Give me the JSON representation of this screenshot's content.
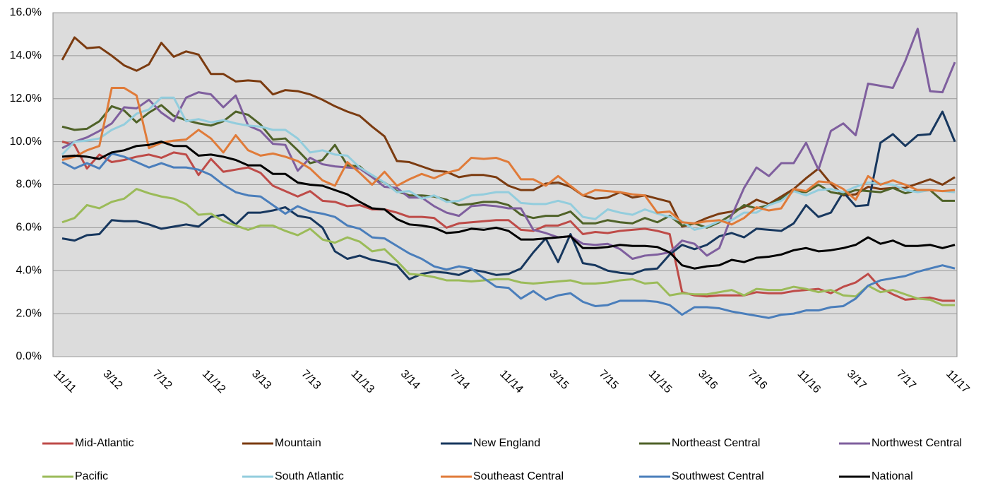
{
  "chart_data": {
    "type": "line",
    "categories": [
      "11/11",
      null,
      null,
      null,
      "3/12",
      null,
      null,
      null,
      "7/12",
      null,
      null,
      null,
      "11/12",
      null,
      null,
      null,
      "3/13",
      null,
      null,
      null,
      "7/13",
      null,
      null,
      null,
      "11/13",
      null,
      null,
      null,
      "3/14",
      null,
      null,
      null,
      "7/14",
      null,
      null,
      null,
      "11/14",
      null,
      null,
      null,
      "3/15",
      null,
      null,
      null,
      "7/15",
      null,
      null,
      null,
      "11/15",
      null,
      null,
      null,
      "3/16",
      null,
      null,
      null,
      "7/16",
      null,
      null,
      null,
      "11/16",
      null,
      null,
      null,
      "3/17",
      null,
      null,
      null,
      "7/17",
      null,
      null,
      null,
      "11/17"
    ],
    "ylim": [
      0,
      16
    ],
    "yticks": [
      {
        "value": 0,
        "label": "0.0%"
      },
      {
        "value": 2,
        "label": "2.0%"
      },
      {
        "value": 4,
        "label": "4.0%"
      },
      {
        "value": 6,
        "label": "6.0%"
      },
      {
        "value": 8,
        "label": "8.0%"
      },
      {
        "value": 10,
        "label": "10.0%"
      },
      {
        "value": 12,
        "label": "12.0%"
      },
      {
        "value": 14,
        "label": "14.0%"
      },
      {
        "value": 16,
        "label": "16.0%"
      }
    ],
    "grid": true,
    "legend": "bottom",
    "series": [
      {
        "name": "Mid-Atlantic",
        "color": "#be4b48",
        "values": [
          10.0,
          9.85,
          8.75,
          9.4,
          9.05,
          9.15,
          9.3,
          9.4,
          9.25,
          9.5,
          9.4,
          8.45,
          9.2,
          8.6,
          8.7,
          8.8,
          8.55,
          7.95,
          7.7,
          7.45,
          7.7,
          7.25,
          7.2,
          7.0,
          7.05,
          6.85,
          6.85,
          6.7,
          6.5,
          6.5,
          6.45,
          6.0,
          6.2,
          6.25,
          6.3,
          6.35,
          6.35,
          5.9,
          5.85,
          6.1,
          6.1,
          6.3,
          5.7,
          5.8,
          5.75,
          5.85,
          5.9,
          5.95,
          5.85,
          5.7,
          3.0,
          2.85,
          2.8,
          2.85,
          2.85,
          2.85,
          3.0,
          2.95,
          2.95,
          3.05,
          3.1,
          3.15,
          2.95,
          3.25,
          3.45,
          3.85,
          3.2,
          2.9,
          2.65,
          2.7,
          2.75,
          2.6,
          2.6
        ]
      },
      {
        "name": "Mountain",
        "color": "#7b3b10",
        "values": [
          13.8,
          14.85,
          14.35,
          14.4,
          14.0,
          13.55,
          13.3,
          13.6,
          14.6,
          13.95,
          14.2,
          14.05,
          13.15,
          13.15,
          12.8,
          12.85,
          12.8,
          12.2,
          12.4,
          12.35,
          12.2,
          11.95,
          11.65,
          11.4,
          11.2,
          10.7,
          10.25,
          9.1,
          9.05,
          8.85,
          8.65,
          8.6,
          8.35,
          8.45,
          8.45,
          8.35,
          7.95,
          7.75,
          7.75,
          8.05,
          8.1,
          7.9,
          7.5,
          7.35,
          7.4,
          7.65,
          7.4,
          7.5,
          7.35,
          7.2,
          6.05,
          6.2,
          6.45,
          6.65,
          6.75,
          6.95,
          7.3,
          7.1,
          7.45,
          7.8,
          8.3,
          8.75,
          8.05,
          7.5,
          7.55,
          7.9,
          7.8,
          7.85,
          7.85,
          8.05,
          8.25,
          8.0,
          8.35
        ]
      },
      {
        "name": "New England",
        "color": "#17375e",
        "values": [
          5.5,
          5.4,
          5.65,
          5.7,
          6.35,
          6.3,
          6.3,
          6.15,
          5.95,
          6.05,
          6.15,
          6.05,
          6.5,
          6.6,
          6.15,
          6.7,
          6.7,
          6.8,
          6.95,
          6.55,
          6.45,
          6.0,
          4.9,
          4.55,
          4.7,
          4.5,
          4.4,
          4.25,
          3.6,
          3.85,
          3.95,
          3.9,
          3.8,
          4.05,
          3.95,
          3.8,
          3.85,
          4.1,
          4.85,
          5.5,
          4.4,
          5.7,
          4.35,
          4.25,
          4.0,
          3.9,
          3.85,
          4.05,
          4.1,
          4.75,
          5.2,
          5.0,
          5.2,
          5.6,
          5.75,
          5.55,
          5.95,
          5.9,
          5.85,
          6.2,
          7.05,
          6.5,
          6.7,
          7.65,
          7.0,
          7.05,
          9.95,
          10.35,
          9.8,
          10.3,
          10.35,
          11.4,
          10.0
        ]
      },
      {
        "name": "Northeast Central",
        "color": "#4f6228",
        "values": [
          10.7,
          10.55,
          10.6,
          10.95,
          11.65,
          11.45,
          10.9,
          11.35,
          11.7,
          11.2,
          11.0,
          10.85,
          10.75,
          10.95,
          11.4,
          11.25,
          10.8,
          10.1,
          10.15,
          9.6,
          9.0,
          9.15,
          9.85,
          8.9,
          8.85,
          8.35,
          8.1,
          7.7,
          7.5,
          7.5,
          7.45,
          7.3,
          7.05,
          7.1,
          7.2,
          7.2,
          7.05,
          6.6,
          6.45,
          6.55,
          6.55,
          6.75,
          6.2,
          6.2,
          6.35,
          6.25,
          6.2,
          6.45,
          6.25,
          6.55,
          6.1,
          6.2,
          6.0,
          6.25,
          6.6,
          7.05,
          6.9,
          7.05,
          7.35,
          7.7,
          7.65,
          8.0,
          7.65,
          7.55,
          7.75,
          7.7,
          7.65,
          7.85,
          7.6,
          7.75,
          7.75,
          7.25,
          7.25
        ]
      },
      {
        "name": "Northwest Central",
        "color": "#7f5f9e",
        "values": [
          9.7,
          10.0,
          10.2,
          10.5,
          10.85,
          11.6,
          11.55,
          11.95,
          11.35,
          10.95,
          12.05,
          12.3,
          12.2,
          11.6,
          12.15,
          10.75,
          10.5,
          9.9,
          9.85,
          8.65,
          9.25,
          8.95,
          8.85,
          8.8,
          8.75,
          8.35,
          7.9,
          7.85,
          7.4,
          7.4,
          7.0,
          6.7,
          6.55,
          7.0,
          7.05,
          7.0,
          6.9,
          6.9,
          5.9,
          5.75,
          5.55,
          5.6,
          5.25,
          5.2,
          5.25,
          5.0,
          4.55,
          4.7,
          4.75,
          4.85,
          5.4,
          5.25,
          4.7,
          5.05,
          6.55,
          7.85,
          8.8,
          8.4,
          9.0,
          9.0,
          9.95,
          8.7,
          10.5,
          10.85,
          10.3,
          12.7,
          12.6,
          12.5,
          13.75,
          15.25,
          12.35,
          12.3,
          13.7
        ]
      },
      {
        "name": "Pacific",
        "color": "#9bbb59",
        "values": [
          6.25,
          6.45,
          7.05,
          6.9,
          7.2,
          7.35,
          7.8,
          7.6,
          7.45,
          7.35,
          7.1,
          6.6,
          6.65,
          6.3,
          6.1,
          5.9,
          6.1,
          6.1,
          5.85,
          5.65,
          5.95,
          5.45,
          5.3,
          5.55,
          5.35,
          4.9,
          5.0,
          4.45,
          3.85,
          3.8,
          3.7,
          3.55,
          3.55,
          3.5,
          3.55,
          3.6,
          3.6,
          3.45,
          3.4,
          3.45,
          3.5,
          3.55,
          3.4,
          3.4,
          3.45,
          3.55,
          3.6,
          3.4,
          3.45,
          2.85,
          2.95,
          2.9,
          2.9,
          3.0,
          3.1,
          2.85,
          3.15,
          3.1,
          3.1,
          3.25,
          3.15,
          3.0,
          3.1,
          2.85,
          2.8,
          3.3,
          3.0,
          3.1,
          2.9,
          2.7,
          2.65,
          2.4,
          2.4
        ]
      },
      {
        "name": "South Atlantic",
        "color": "#93cddd",
        "values": [
          9.4,
          10.0,
          10.05,
          10.15,
          10.55,
          10.8,
          11.3,
          11.5,
          12.05,
          12.05,
          10.95,
          11.05,
          10.9,
          11.0,
          10.85,
          10.75,
          10.7,
          10.55,
          10.55,
          10.15,
          9.5,
          9.6,
          9.4,
          9.35,
          8.8,
          8.45,
          8.1,
          7.65,
          7.7,
          7.35,
          7.5,
          7.2,
          7.25,
          7.5,
          7.55,
          7.65,
          7.65,
          7.15,
          7.1,
          7.1,
          7.25,
          7.1,
          6.5,
          6.4,
          6.85,
          6.7,
          6.6,
          6.85,
          6.65,
          6.5,
          6.3,
          5.9,
          6.05,
          6.3,
          6.35,
          6.7,
          6.7,
          7.05,
          7.25,
          7.7,
          7.5,
          7.75,
          7.8,
          7.65,
          7.9,
          8.1,
          8.05,
          8.0,
          7.75,
          7.65,
          7.75,
          7.7,
          7.65
        ]
      },
      {
        "name": "Southeast Central",
        "color": "#e07b39",
        "values": [
          9.15,
          9.3,
          9.6,
          9.8,
          12.5,
          12.5,
          12.15,
          9.7,
          9.95,
          10.05,
          10.1,
          10.55,
          10.15,
          9.5,
          10.3,
          9.6,
          9.35,
          9.45,
          9.3,
          9.1,
          8.75,
          8.2,
          7.95,
          9.05,
          8.55,
          8.0,
          8.6,
          7.95,
          8.25,
          8.5,
          8.3,
          8.55,
          8.7,
          9.25,
          9.2,
          9.25,
          9.05,
          8.25,
          8.25,
          7.95,
          8.4,
          7.95,
          7.5,
          7.75,
          7.7,
          7.65,
          7.55,
          7.5,
          6.7,
          6.75,
          6.25,
          6.2,
          6.3,
          6.35,
          6.15,
          6.45,
          6.95,
          6.8,
          6.9,
          7.8,
          7.7,
          8.15,
          8.1,
          7.8,
          7.3,
          8.4,
          8.0,
          8.2,
          8.0,
          7.75,
          7.75,
          7.7,
          7.75
        ]
      },
      {
        "name": "Southwest Central",
        "color": "#4a7ebb",
        "values": [
          9.05,
          8.75,
          9.0,
          8.75,
          9.45,
          9.3,
          9.05,
          8.8,
          9.0,
          8.8,
          8.8,
          8.7,
          8.45,
          8.0,
          7.65,
          7.5,
          7.45,
          7.05,
          6.65,
          7.0,
          6.75,
          6.65,
          6.5,
          6.1,
          5.95,
          5.55,
          5.5,
          5.15,
          4.8,
          4.55,
          4.2,
          4.05,
          4.2,
          4.1,
          3.65,
          3.25,
          3.2,
          2.7,
          3.05,
          2.65,
          2.85,
          2.95,
          2.55,
          2.35,
          2.4,
          2.6,
          2.6,
          2.6,
          2.55,
          2.4,
          1.95,
          2.3,
          2.3,
          2.25,
          2.1,
          2.0,
          1.9,
          1.8,
          1.95,
          2.0,
          2.15,
          2.15,
          2.3,
          2.35,
          2.7,
          3.3,
          3.55,
          3.65,
          3.75,
          3.95,
          4.1,
          4.25,
          4.1
        ]
      },
      {
        "name": "National",
        "color": "#000000",
        "values": [
          9.3,
          9.35,
          9.3,
          9.2,
          9.5,
          9.6,
          9.8,
          9.85,
          10.0,
          9.8,
          9.8,
          9.35,
          9.4,
          9.3,
          9.15,
          8.9,
          8.9,
          8.5,
          8.5,
          8.1,
          8.0,
          7.95,
          7.75,
          7.55,
          7.2,
          6.9,
          6.85,
          6.4,
          6.15,
          6.1,
          6.0,
          5.75,
          5.8,
          5.95,
          5.9,
          6.0,
          5.85,
          5.45,
          5.45,
          5.5,
          5.55,
          5.6,
          5.05,
          5.05,
          5.1,
          5.2,
          5.15,
          5.15,
          5.1,
          4.85,
          4.25,
          4.1,
          4.2,
          4.25,
          4.5,
          4.4,
          4.6,
          4.65,
          4.75,
          4.95,
          5.05,
          4.9,
          4.95,
          5.05,
          5.2,
          5.55,
          5.25,
          5.4,
          5.15,
          5.15,
          5.2,
          5.05,
          5.2
        ]
      }
    ]
  }
}
